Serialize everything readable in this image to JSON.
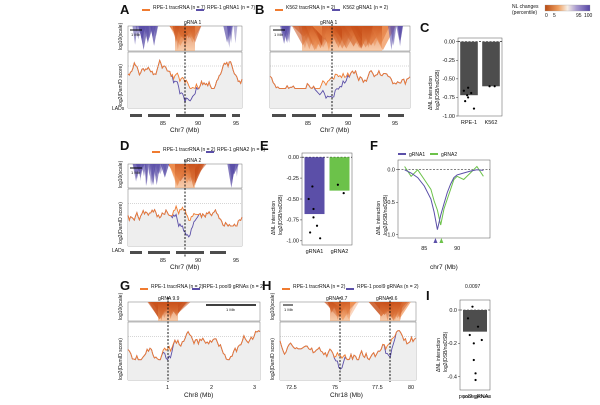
{
  "figure": {
    "colorbar": {
      "title": "NL changes",
      "subtitle": "(percentile)",
      "ticks": [
        "0",
        "5",
        "95",
        "100"
      ],
      "colors": {
        "low": "#b84a12",
        "mid": "#f7d8b8",
        "high": "#5544a5"
      }
    },
    "colors": {
      "control": "#f07b30",
      "treated": "#5b4fa8",
      "green": "#6cc24a",
      "dark": "#4d4d4d",
      "lad": "#4d4d4d"
    },
    "panels": [
      {
        "letter": "A",
        "legend": [
          {
            "label": "RPE-1 tracrRNA (n = 7)",
            "color": "#f07b30"
          },
          {
            "label": "RPE-1 gRNA1 (n = 7)",
            "color": "#5b4fa8"
          }
        ],
        "guide_label": "gRNA 1",
        "scale_label": "1 Mb",
        "ylabel_top": "log10(scale)",
        "ylabel_bottom": "log2(DamID score)",
        "ylabel_lads": "LADs",
        "xlabel": "Chr7 (Mb)",
        "xticks": [
          "85",
          "90",
          "95"
        ]
      },
      {
        "letter": "B",
        "legend": [
          {
            "label": "K562 tracrRNA (n = 2)",
            "color": "#f07b30"
          },
          {
            "label": "K562 gRNA1 (n = 2)",
            "color": "#5b4fa8"
          }
        ],
        "guide_label": "gRNA 1",
        "scale_label": "1 Mb",
        "xlabel": "Chr7 (Mb)",
        "xticks": [
          "85",
          "90",
          "95"
        ]
      },
      {
        "letter": "D",
        "legend": [
          {
            "label": "RPE-1 tracrRNA (n = 2)",
            "color": "#f07b30"
          },
          {
            "label": "RPE-1 gRNA2 (n = 2)",
            "color": "#5b4fa8"
          }
        ],
        "guide_label": "gRNA 2",
        "scale_label": "1 Mb",
        "ylabel_top": "log10(scale)",
        "ylabel_bottom": "log2(DamID score)",
        "ylabel_lads": "LADs",
        "xlabel": "Chr7 (Mb)",
        "xticks": [
          "85",
          "90",
          "95"
        ]
      },
      {
        "letter": "G",
        "legend": [
          {
            "label": "RPE-1 tracrRNA (n = 2)",
            "color": "#f07b30"
          },
          {
            "label": "RPE-1 pool9 gRNAs (n = 2)",
            "color": "#5b4fa8"
          }
        ],
        "guide_label": "gRNA 9.9",
        "scale_label": "1 Mb",
        "ylabel_top": "log10(scale)",
        "ylabel_bottom": "log2(DamID score)",
        "xlabel": "Chr8 (Mb)",
        "xticks": [
          "1",
          "2",
          "3"
        ]
      },
      {
        "letter": "H",
        "legend": [
          {
            "label": "RPE-1 tracrRNA (n = 2)",
            "color": "#f07b30"
          },
          {
            "label": "RPE-1 pool9 gRNAs (n = 2)",
            "color": "#5b4fa8"
          }
        ],
        "guide_labels": [
          "gRNA 9.7",
          "gRNA 9.6"
        ],
        "scale_label": "1 Mb",
        "ylabel_top": "log10(scale)",
        "ylabel_bottom": "log2(DamID score)",
        "xlabel": "Chr18 (Mb)",
        "xticks": [
          "72.5",
          "75",
          "77.5",
          "80"
        ]
      },
      {
        "letter": "C",
        "ylabel_line1": "ΔNL interaction",
        "ylabel_line2": "log2(DSB/noDSB)",
        "yticks": [
          "0.00",
          "-0.25",
          "-0.50",
          "-0.75",
          "-1.00"
        ]
      },
      {
        "letter": "E",
        "ylabel_line1": "ΔNL interaction",
        "ylabel_line2": "log2(DSB/noDSB)",
        "yticks": [
          "0.00",
          "-0.25",
          "-0.50",
          "-0.75",
          "-1.00"
        ]
      },
      {
        "letter": "F",
        "legend": [
          {
            "label": "gRNA1",
            "color": "#5b4fa8"
          },
          {
            "label": "gRNA2",
            "color": "#6cc24a"
          }
        ],
        "ylabel_line1": "ΔNL interaction",
        "ylabel_line2": "log2(DSB/noDSB)",
        "xlabel": "chr7 (Mb)",
        "yticks": [
          "0.0",
          "-0.5",
          "-1.0"
        ],
        "xticks": [
          "85",
          "90"
        ]
      },
      {
        "letter": "I",
        "pvalue": "0.0097",
        "ylabel_line1": "ΔNL interaction",
        "ylabel_line2": "log2(DSB/noDSB)",
        "yticks": [
          "0.0",
          "-0.2",
          "-0.4"
        ],
        "xlabel": "pool9 gRNAs"
      }
    ]
  },
  "chart_data": [
    {
      "type": "bar",
      "panel": "C",
      "title": "",
      "categories": [
        "RPE-1",
        "K562"
      ],
      "values": [
        -0.72,
        -0.6
      ],
      "points": [
        [
          -0.72,
          -0.66,
          -0.69,
          -0.8,
          -0.9,
          -0.62,
          -0.75
        ],
        [
          -0.6,
          -0.6
        ]
      ],
      "ylim": [
        -1.0,
        0.05
      ]
    },
    {
      "type": "bar",
      "panel": "E",
      "categories": [
        "gRNA1",
        "gRNA2"
      ],
      "values": [
        -0.68,
        -0.4
      ],
      "points": [
        [
          -0.35,
          -0.5,
          -0.82,
          -0.9,
          -0.97,
          -0.62,
          -0.72
        ],
        [
          -0.33,
          -0.43
        ]
      ],
      "ylim": [
        -1.05,
        0.05
      ]
    },
    {
      "type": "line",
      "panel": "F",
      "xlabel": "chr7 (Mb)",
      "ylim": [
        -1.05,
        0.15
      ],
      "x": [
        82,
        83,
        84,
        85,
        86,
        86.5,
        87,
        87.5,
        88,
        88.5,
        89,
        89.5,
        90,
        91,
        92,
        93,
        94
      ],
      "series": [
        {
          "name": "gRNA1",
          "values": [
            0.0,
            -0.05,
            -0.12,
            -0.25,
            -0.45,
            -0.65,
            -0.92,
            -0.7,
            -0.52,
            -0.35,
            -0.22,
            -0.12,
            -0.08,
            -0.05,
            -0.02,
            0.0,
            -0.01
          ]
        },
        {
          "name": "gRNA2",
          "values": [
            0.05,
            -0.1,
            0.0,
            -0.15,
            -0.3,
            -0.48,
            -0.62,
            -0.85,
            -0.6,
            -0.45,
            -0.3,
            -0.15,
            -0.1,
            -0.15,
            -0.05,
            0.05,
            -0.1
          ]
        }
      ]
    },
    {
      "type": "bar",
      "panel": "I",
      "categories": [
        "pool9 gRNAs"
      ],
      "values": [
        -0.13
      ],
      "points": [
        [
          0.02,
          -0.05,
          -0.1,
          -0.15,
          -0.18,
          -0.2,
          -0.3,
          -0.38,
          -0.42
        ]
      ],
      "ylim": [
        -0.48,
        0.06
      ],
      "annotation": "0.0097"
    }
  ]
}
